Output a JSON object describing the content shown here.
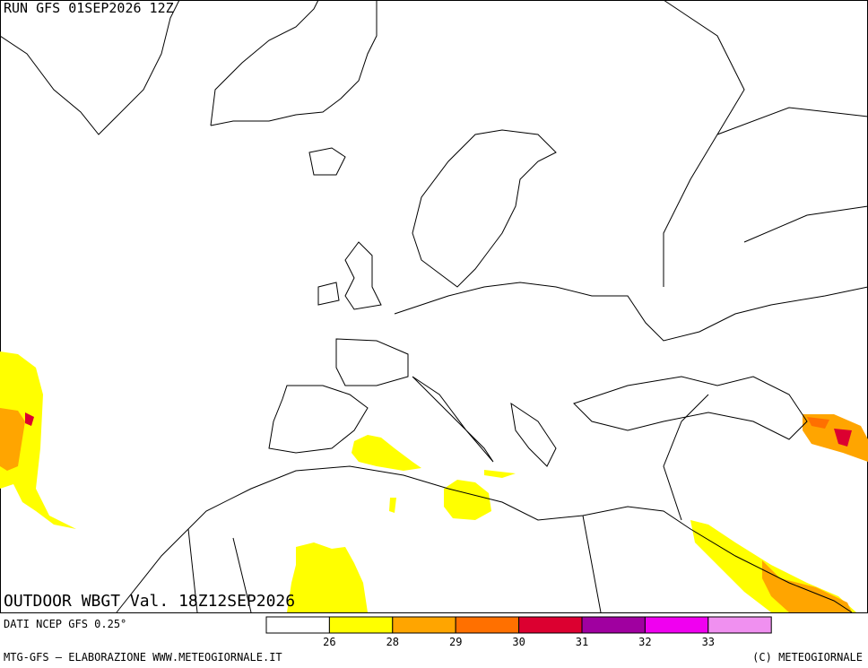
{
  "header": {
    "run": "RUN GFS 01SEP2026 12Z"
  },
  "map": {
    "title": "OUTDOOR WBGT Val. 18Z12SEP2026"
  },
  "legend": {
    "colors": [
      "#ffffff",
      "#ffff00",
      "#ffa500",
      "#ff7000",
      "#dc0030",
      "#a000a0",
      "#f000f0",
      "#f090f0"
    ],
    "ticks": [
      26,
      28,
      29,
      30,
      31,
      32,
      33
    ]
  },
  "footer": {
    "source": "DATI NCEP GFS 0.25°",
    "credit": "MTG-GFS — ELABORAZIONE WWW.METEOGIORNALE.IT",
    "copyright": "(C) METEOGIORNALE"
  }
}
